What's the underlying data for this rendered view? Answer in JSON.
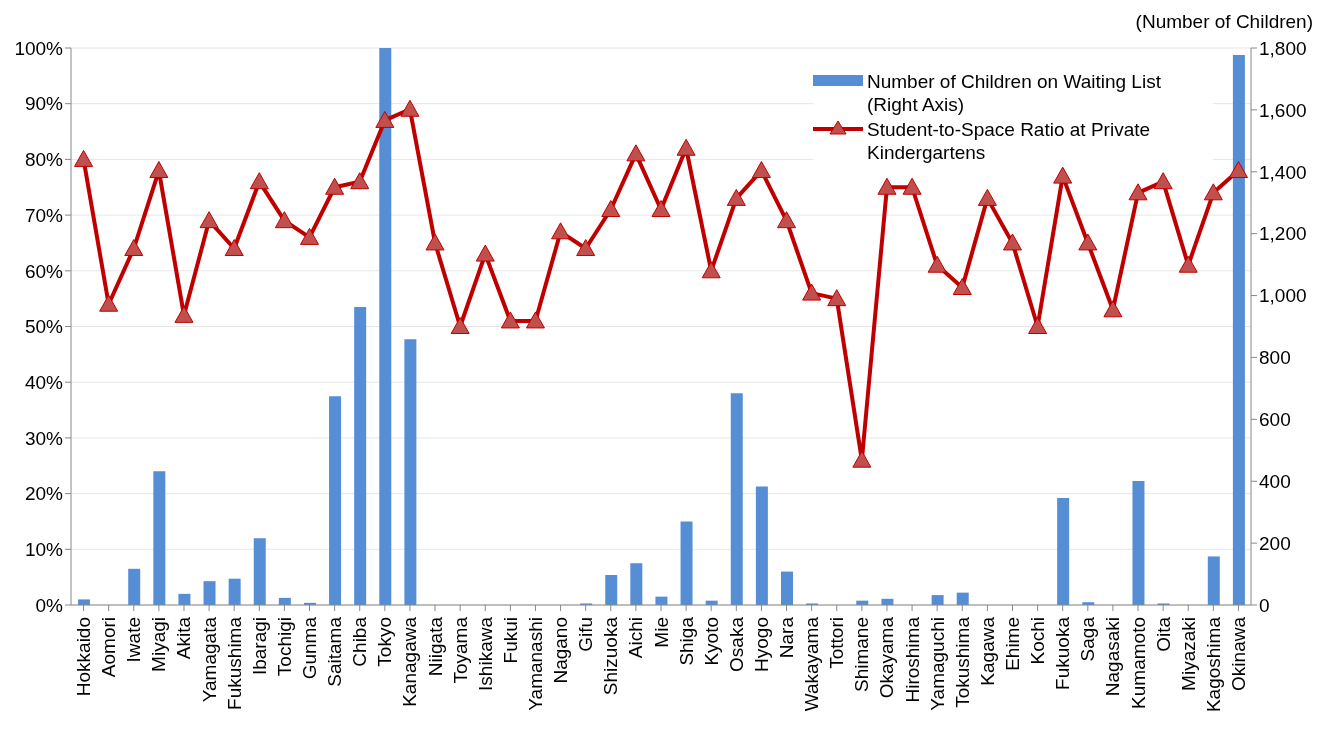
{
  "chart_data": {
    "type": "bar",
    "y2label": "(Number of Children)",
    "categories": [
      "Hokkaido",
      "Aomori",
      "Iwate",
      "Miyagi",
      "Akita",
      "Yamagata",
      "Fukushima",
      "Ibaragi",
      "Tochigi",
      "Gunma",
      "Saitama",
      "Chiba",
      "Tokyo",
      "Kanagawa",
      "Niigata",
      "Toyama",
      "Ishikawa",
      "Fukui",
      "Yamanashi",
      "Nagano",
      "Gifu",
      "Shizuoka",
      "Aichi",
      "Mie",
      "Shiga",
      "Kyoto",
      "Osaka",
      "Hyogo",
      "Nara",
      "Wakayama",
      "Tottori",
      "Shimane",
      "Okayama",
      "Hiroshima",
      "Yamaguchi",
      "Tokushima",
      "Kagawa",
      "Ehime",
      "Kochi",
      "Fukuoka",
      "Saga",
      "Nagasaki",
      "Kumamoto",
      "Oita",
      "Miyazaki",
      "Kagoshima",
      "Okinawa"
    ],
    "series": [
      {
        "name": "Number of Children on Waiting List (Right Axis)",
        "axis": "y2",
        "color": "#558ed5",
        "values": [
          18,
          0,
          117,
          432,
          36,
          77,
          85,
          216,
          23,
          7,
          675,
          963,
          1800,
          859,
          0,
          0,
          0,
          0,
          0,
          0,
          5,
          97,
          135,
          27,
          270,
          14,
          684,
          383,
          108,
          5,
          0,
          14,
          20,
          0,
          32,
          40,
          0,
          0,
          0,
          346,
          9,
          0,
          401,
          5,
          0,
          157,
          1777
        ]
      },
      {
        "name": "Student-to-Space Ratio at Private Kindergartens",
        "type": "line",
        "color": "#c00000",
        "marker": "triangle",
        "values": [
          80,
          54,
          64,
          78,
          52,
          69,
          64,
          76,
          69,
          66,
          75,
          76,
          87,
          89,
          65,
          50,
          63,
          51,
          51,
          67,
          64,
          71,
          81,
          71,
          82,
          60,
          73,
          78,
          69,
          56,
          55,
          26,
          75,
          75,
          61,
          57,
          73,
          65,
          50,
          77,
          65,
          53,
          74,
          76,
          61,
          74,
          78
        ]
      }
    ],
    "ylim": [
      0,
      100
    ],
    "yticks": [
      {
        "value": 0,
        "label": "0%"
      },
      {
        "value": 10,
        "label": "10%"
      },
      {
        "value": 20,
        "label": "20%"
      },
      {
        "value": 30,
        "label": "30%"
      },
      {
        "value": 40,
        "label": "40%"
      },
      {
        "value": 50,
        "label": "50%"
      },
      {
        "value": 60,
        "label": "60%"
      },
      {
        "value": 70,
        "label": "70%"
      },
      {
        "value": 80,
        "label": "80%"
      },
      {
        "value": 90,
        "label": "90%"
      },
      {
        "value": 100,
        "label": "100%"
      }
    ],
    "y2lim": [
      0,
      1800
    ],
    "y2ticks": [
      0,
      200,
      400,
      600,
      800,
      {
        "value": 1000,
        "label": "1,000"
      },
      {
        "value": 1200,
        "label": "1,200"
      },
      {
        "value": 1400,
        "label": "1,400"
      },
      {
        "value": 1600,
        "label": "1,600"
      },
      {
        "value": 1800,
        "label": "1,800"
      }
    ],
    "grid": "y",
    "legend": "top right"
  }
}
